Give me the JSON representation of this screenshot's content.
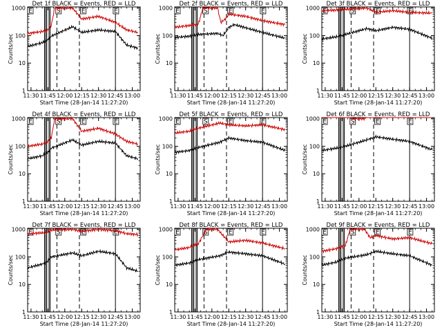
{
  "chart_data": [
    {
      "type": "line",
      "title": "Det 1f BLACK = Events, RED = LLD",
      "xlabel": "Start Time (28-Jan-14 11:27:20)",
      "ylabel": "Counts/sec",
      "x_tick_labels": [
        "11:30",
        "11:45",
        "12:00",
        "12:15",
        "12:30",
        "12:45",
        "13:00"
      ],
      "y_tick_labels": [
        "1",
        "10",
        "100",
        "1000"
      ],
      "ylim": [
        1,
        1100
      ],
      "log_y": true,
      "series": [
        {
          "name": "Events",
          "color": "#000000",
          "x": [
            "11:27",
            "11:40",
            "11:45",
            "11:48",
            "12:07",
            "12:15",
            "12:30",
            "12:45",
            "12:55",
            "13:05"
          ],
          "values": [
            40,
            55,
            70,
            95,
            210,
            130,
            160,
            140,
            45,
            35
          ]
        },
        {
          "name": "LLD",
          "color": "#cc0000",
          "x": [
            "11:27",
            "11:40",
            "11:45",
            "11:48",
            "11:51",
            "12:07",
            "12:15",
            "12:30",
            "12:45",
            "12:55",
            "13:05"
          ],
          "values": [
            120,
            140,
            160,
            230,
            1000,
            1000,
            400,
            500,
            300,
            160,
            130
          ]
        }
      ],
      "flags": [
        {
          "label": "E",
          "x": "11:27"
        },
        {
          "label": "S",
          "x": "11:52"
        },
        {
          "label": "E",
          "x": "12:14"
        },
        {
          "label": "E",
          "x": "12:43"
        }
      ],
      "solid_lines": [
        "11:42",
        "11:43",
        "11:44",
        "11:46",
        "11:47",
        "12:45"
      ],
      "dashed_lines": [
        "11:53",
        "12:13"
      ],
      "dotted_lines": [
        "13:07"
      ]
    },
    {
      "type": "line",
      "title": "Det 2f BLACK = Events, RED = LLD",
      "xlabel": "Start Time (28-Jan-14 11:27:20)",
      "ylabel": "Counts/sec",
      "x_tick_labels": [
        "11:30",
        "11:45",
        "12:00",
        "12:15",
        "12:30",
        "12:45",
        "13:00"
      ],
      "y_tick_labels": [
        "1",
        "10",
        "100",
        "1000"
      ],
      "ylim": [
        1,
        1100
      ],
      "log_y": true,
      "series": [
        {
          "name": "Events",
          "color": "#000000",
          "x": [
            "11:27",
            "11:40",
            "11:48",
            "12:05",
            "12:10",
            "12:15",
            "12:20",
            "12:45",
            "13:05"
          ],
          "values": [
            85,
            95,
            110,
            120,
            100,
            200,
            250,
            130,
            80
          ]
        },
        {
          "name": "LLD",
          "color": "#cc0000",
          "x": [
            "11:27",
            "11:40",
            "11:48",
            "11:52",
            "11:55",
            "12:00",
            "12:05",
            "12:08",
            "12:12",
            "12:15",
            "12:30",
            "12:45",
            "13:05"
          ],
          "values": [
            200,
            230,
            260,
            1000,
            1000,
            1000,
            1000,
            300,
            400,
            600,
            500,
            350,
            250
          ]
        }
      ],
      "flags": [
        {
          "label": "E",
          "x": "11:27"
        },
        {
          "label": "S",
          "x": "11:52"
        },
        {
          "label": "E",
          "x": "12:14"
        },
        {
          "label": "E",
          "x": "12:43"
        }
      ],
      "solid_lines": [
        "11:42",
        "11:43",
        "11:44",
        "11:46",
        "11:47",
        "12:45"
      ],
      "dashed_lines": [
        "11:53",
        "12:13"
      ],
      "dotted_lines": [
        "13:07"
      ]
    },
    {
      "type": "line",
      "title": "Det 3f BLACK = Events, RED = LLD",
      "xlabel": "Start Time (28-Jan-14 11:27:20)",
      "ylabel": "Counts/sec",
      "x_tick_labels": [
        "11:30",
        "11:45",
        "12:00",
        "12:15",
        "12:30",
        "12:45",
        "13:00"
      ],
      "y_tick_labels": [
        "1",
        "10",
        "100",
        "1000"
      ],
      "ylim": [
        1,
        1100
      ],
      "log_y": true,
      "series": [
        {
          "name": "Events",
          "color": "#000000",
          "x": [
            "11:27",
            "11:40",
            "11:48",
            "12:07",
            "12:15",
            "12:30",
            "12:45",
            "13:05"
          ],
          "values": [
            75,
            90,
            110,
            180,
            150,
            200,
            170,
            80
          ]
        },
        {
          "name": "LLD",
          "color": "#cc0000",
          "x": [
            "11:27",
            "11:40",
            "11:48",
            "12:07",
            "12:15",
            "12:30",
            "12:45",
            "13:05"
          ],
          "values": [
            800,
            850,
            900,
            1000,
            700,
            800,
            700,
            650
          ]
        }
      ],
      "flags": [
        {
          "label": "E",
          "x": "11:27"
        },
        {
          "label": "S",
          "x": "11:52"
        },
        {
          "label": "E",
          "x": "12:14"
        },
        {
          "label": "E",
          "x": "12:43"
        }
      ],
      "solid_lines": [
        "11:42",
        "11:43",
        "11:44",
        "11:46",
        "11:47",
        "12:45"
      ],
      "dashed_lines": [
        "11:53",
        "12:13"
      ],
      "dotted_lines": [
        "13:07"
      ]
    },
    {
      "type": "line",
      "title": "Det 4f BLACK = Events, RED = LLD",
      "xlabel": "Start Time (28-Jan-14 11:27:20)",
      "ylabel": "Counts/sec",
      "x_tick_labels": [
        "11:30",
        "11:45",
        "12:00",
        "12:15",
        "12:30",
        "12:45",
        "13:00"
      ],
      "y_tick_labels": [
        "1",
        "10",
        "100",
        "1000"
      ],
      "ylim": [
        1,
        1100
      ],
      "log_y": true,
      "series": [
        {
          "name": "Events",
          "color": "#000000",
          "x": [
            "11:27",
            "11:40",
            "11:45",
            "11:48",
            "12:07",
            "12:15",
            "12:30",
            "12:45",
            "12:55",
            "13:05"
          ],
          "values": [
            35,
            45,
            60,
            85,
            170,
            110,
            150,
            130,
            45,
            35
          ]
        },
        {
          "name": "LLD",
          "color": "#cc0000",
          "x": [
            "11:27",
            "11:40",
            "11:45",
            "11:48",
            "11:51",
            "12:07",
            "12:15",
            "12:30",
            "12:45",
            "12:55",
            "13:05"
          ],
          "values": [
            100,
            120,
            150,
            200,
            1000,
            1000,
            350,
            450,
            280,
            150,
            120
          ]
        }
      ],
      "flags": [
        {
          "label": "E",
          "x": "11:27"
        },
        {
          "label": "S",
          "x": "11:52"
        },
        {
          "label": "E",
          "x": "12:14"
        },
        {
          "label": "E",
          "x": "12:43"
        }
      ],
      "solid_lines": [
        "11:42",
        "11:43",
        "11:44",
        "11:46",
        "11:47",
        "12:45"
      ],
      "dashed_lines": [
        "11:53",
        "12:13"
      ],
      "dotted_lines": [
        "13:07"
      ]
    },
    {
      "type": "line",
      "title": "Det 5f BLACK = Events, RED = LLD",
      "xlabel": "Start Time (28-Jan-14 11:27:20)",
      "ylabel": "Counts/sec",
      "x_tick_labels": [
        "11:30",
        "11:45",
        "12:00",
        "12:15",
        "12:30",
        "12:45",
        "13:00"
      ],
      "y_tick_labels": [
        "1",
        "10",
        "100",
        "1000"
      ],
      "ylim": [
        1,
        1100
      ],
      "log_y": true,
      "series": [
        {
          "name": "Events",
          "color": "#000000",
          "x": [
            "11:27",
            "11:40",
            "11:48",
            "12:07",
            "12:15",
            "12:30",
            "12:45",
            "13:05"
          ],
          "values": [
            60,
            70,
            90,
            140,
            200,
            160,
            140,
            70
          ]
        },
        {
          "name": "LLD",
          "color": "#cc0000",
          "x": [
            "11:27",
            "11:40",
            "11:48",
            "12:07",
            "12:15",
            "12:30",
            "12:45",
            "13:05"
          ],
          "values": [
            300,
            350,
            450,
            700,
            600,
            550,
            600,
            400
          ]
        }
      ],
      "flags": [
        {
          "label": "E",
          "x": "11:27"
        },
        {
          "label": "S",
          "x": "11:52"
        },
        {
          "label": "E",
          "x": "12:14"
        },
        {
          "label": "E",
          "x": "12:43"
        }
      ],
      "solid_lines": [
        "11:42",
        "11:43",
        "11:44",
        "11:46",
        "11:47",
        "12:45"
      ],
      "dashed_lines": [
        "11:53",
        "12:13"
      ],
      "dotted_lines": [
        "13:07"
      ]
    },
    {
      "type": "line",
      "title": "Det 6f BLACK = Events, RED = LLD",
      "xlabel": "Start Time (28-Jan-14 11:27:20)",
      "ylabel": "Counts/sec",
      "x_tick_labels": [
        "11:30",
        "11:45",
        "12:00",
        "12:15",
        "12:30",
        "12:45",
        "13:00"
      ],
      "y_tick_labels": [
        "1",
        "10",
        "100",
        "1000"
      ],
      "ylim": [
        1,
        1100
      ],
      "log_y": true,
      "series": [
        {
          "name": "Events",
          "color": "#000000",
          "x": [
            "11:27",
            "11:40",
            "11:48",
            "12:07",
            "12:15",
            "12:30",
            "12:45",
            "13:05"
          ],
          "values": [
            70,
            85,
            100,
            170,
            220,
            180,
            150,
            75
          ]
        },
        {
          "name": "LLD",
          "color": "#cc0000",
          "x": [
            "11:27",
            "11:40",
            "11:48",
            "11:55",
            "12:00",
            "12:05",
            "12:08",
            "12:15",
            "12:30",
            "12:45",
            "13:05"
          ],
          "values": [
            1300,
            1350,
            1400,
            1000,
            1000,
            1000,
            1400,
            1500,
            1450,
            1400,
            1350
          ]
        }
      ],
      "flags": [
        {
          "label": "E",
          "x": "11:27"
        },
        {
          "label": "S",
          "x": "11:52"
        },
        {
          "label": "E",
          "x": "12:14"
        },
        {
          "label": "E",
          "x": "12:43"
        }
      ],
      "solid_lines": [
        "11:42",
        "11:43",
        "11:44",
        "11:46",
        "11:47",
        "12:45"
      ],
      "dashed_lines": [
        "11:53",
        "12:13"
      ],
      "dotted_lines": [
        "13:07"
      ]
    },
    {
      "type": "line",
      "title": "Det 7f BLACK = Events, RED = LLD",
      "xlabel": "Start Time (28-Jan-14 11:27:20)",
      "ylabel": "Counts/sec",
      "x_tick_labels": [
        "11:30",
        "11:45",
        "12:00",
        "12:15",
        "12:30",
        "12:45",
        "13:00"
      ],
      "y_tick_labels": [
        "1",
        "10",
        "100",
        "1000"
      ],
      "ylim": [
        1,
        1100
      ],
      "log_y": true,
      "series": [
        {
          "name": "Events",
          "color": "#000000",
          "x": [
            "11:27",
            "11:40",
            "11:45",
            "11:48",
            "12:07",
            "12:15",
            "12:30",
            "12:45",
            "12:55",
            "13:05"
          ],
          "values": [
            40,
            55,
            70,
            100,
            140,
            110,
            160,
            130,
            40,
            30
          ]
        },
        {
          "name": "LLD",
          "color": "#cc0000",
          "x": [
            "11:27",
            "11:40",
            "11:45",
            "11:48",
            "12:07",
            "12:15",
            "12:30",
            "12:45",
            "12:55",
            "13:05"
          ],
          "values": [
            700,
            750,
            800,
            950,
            1000,
            850,
            1000,
            900,
            700,
            650
          ]
        }
      ],
      "flags": [
        {
          "label": "E",
          "x": "11:27"
        },
        {
          "label": "S",
          "x": "11:52"
        },
        {
          "label": "E",
          "x": "12:14"
        },
        {
          "label": "E",
          "x": "12:43"
        }
      ],
      "solid_lines": [
        "11:42",
        "11:43",
        "11:44",
        "11:46",
        "11:47",
        "12:45"
      ],
      "dashed_lines": [
        "11:53",
        "12:13"
      ],
      "dotted_lines": [
        "13:07"
      ]
    },
    {
      "type": "line",
      "title": "Det 8f BLACK = Events, RED = LLD",
      "xlabel": "Start Time (28-Jan-14 11:27:20)",
      "ylabel": "Counts/sec",
      "x_tick_labels": [
        "11:30",
        "11:45",
        "12:00",
        "12:15",
        "12:30",
        "12:45",
        "13:00"
      ],
      "y_tick_labels": [
        "1",
        "10",
        "100",
        "1000"
      ],
      "ylim": [
        1,
        1100
      ],
      "log_y": true,
      "series": [
        {
          "name": "Events",
          "color": "#000000",
          "x": [
            "11:27",
            "11:40",
            "11:48",
            "12:07",
            "12:15",
            "12:30",
            "12:45",
            "13:05"
          ],
          "values": [
            50,
            60,
            80,
            110,
            150,
            130,
            110,
            55
          ]
        },
        {
          "name": "LLD",
          "color": "#cc0000",
          "x": [
            "11:27",
            "11:40",
            "11:48",
            "11:55",
            "12:05",
            "12:15",
            "12:30",
            "12:45",
            "13:05"
          ],
          "values": [
            180,
            220,
            300,
            1000,
            1000,
            350,
            400,
            320,
            200
          ]
        }
      ],
      "flags": [
        {
          "label": "E",
          "x": "11:27"
        },
        {
          "label": "S",
          "x": "11:52"
        },
        {
          "label": "E",
          "x": "12:14"
        },
        {
          "label": "E",
          "x": "12:43"
        }
      ],
      "solid_lines": [
        "11:42",
        "11:43",
        "11:44",
        "11:46",
        "11:47",
        "12:45"
      ],
      "dashed_lines": [
        "11:53",
        "12:13"
      ],
      "dotted_lines": [
        "13:07"
      ]
    },
    {
      "type": "line",
      "title": "Det 9f BLACK = Events, RED = LLD",
      "xlabel": "Start Time (28-Jan-14 11:27:20)",
      "ylabel": "Counts/sec",
      "x_tick_labels": [
        "11:30",
        "11:45",
        "12:00",
        "12:15",
        "12:30",
        "12:45",
        "13:00"
      ],
      "y_tick_labels": [
        "1",
        "10",
        "100",
        "1000"
      ],
      "ylim": [
        1,
        1100
      ],
      "log_y": true,
      "series": [
        {
          "name": "Events",
          "color": "#000000",
          "x": [
            "11:27",
            "11:40",
            "11:48",
            "12:07",
            "12:15",
            "12:30",
            "12:45",
            "13:05"
          ],
          "values": [
            50,
            65,
            90,
            120,
            160,
            130,
            110,
            50
          ]
        },
        {
          "name": "LLD",
          "color": "#cc0000",
          "x": [
            "11:27",
            "11:40",
            "11:48",
            "11:52",
            "12:05",
            "12:10",
            "12:15",
            "12:30",
            "12:45",
            "13:05"
          ],
          "values": [
            160,
            200,
            260,
            1000,
            1000,
            500,
            600,
            450,
            500,
            300
          ]
        }
      ],
      "flags": [
        {
          "label": "E",
          "x": "11:27"
        },
        {
          "label": "S",
          "x": "11:52"
        },
        {
          "label": "E",
          "x": "12:14"
        },
        {
          "label": "E",
          "x": "12:43"
        }
      ],
      "solid_lines": [
        "11:42",
        "11:43",
        "11:44",
        "11:46",
        "11:47",
        "12:45"
      ],
      "dashed_lines": [
        "11:53",
        "12:13"
      ],
      "dotted_lines": [
        "13:07"
      ]
    }
  ]
}
